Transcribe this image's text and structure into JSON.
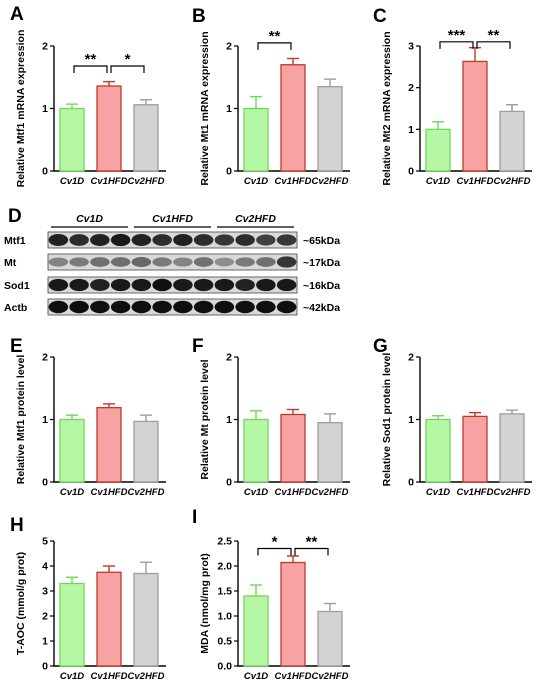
{
  "colors": {
    "green_fill": "#b5f7a5",
    "green_edge": "#6fd85a",
    "red_fill": "#f8a3a3",
    "red_edge": "#c0392b",
    "gray_fill": "#d3d3d3",
    "gray_edge": "#9e9e9e",
    "axis": "#000000"
  },
  "chart_data": [
    {
      "id": "A",
      "type": "bar",
      "panel_label": "A",
      "categories": [
        "Cv1D",
        "Cv1HFD",
        "Cv2HFD"
      ],
      "values": [
        1.0,
        1.36,
        1.06
      ],
      "errors": [
        0.07,
        0.07,
        0.08
      ],
      "ylabel": "Relative Mtf1 mRNA expression",
      "ylim": [
        0,
        2
      ],
      "yticks": [
        0,
        1,
        2
      ],
      "significance": [
        {
          "from": 0,
          "to": 1,
          "label": "**",
          "y": 1.68
        },
        {
          "from": 1,
          "to": 2,
          "label": "*",
          "y": 1.68
        }
      ]
    },
    {
      "id": "B",
      "type": "bar",
      "panel_label": "B",
      "categories": [
        "Cv1D",
        "Cv1HFD",
        "Cv2HFD"
      ],
      "values": [
        1.0,
        1.7,
        1.35
      ],
      "errors": [
        0.19,
        0.1,
        0.12
      ],
      "ylabel": "Relative Mt1 mRNA expression",
      "ylim": [
        0,
        2
      ],
      "yticks": [
        0,
        1,
        2
      ],
      "significance": [
        {
          "from": 0,
          "to": 1,
          "label": "**",
          "y": 2.05
        }
      ]
    },
    {
      "id": "C",
      "type": "bar",
      "panel_label": "C",
      "categories": [
        "Cv1D",
        "Cv1HFD",
        "Cv2HFD"
      ],
      "values": [
        1.0,
        2.63,
        1.43
      ],
      "errors": [
        0.18,
        0.33,
        0.16
      ],
      "ylabel": "Relative Mt2 mRNA expression",
      "ylim": [
        0,
        3
      ],
      "yticks": [
        0,
        1,
        2,
        3
      ],
      "significance": [
        {
          "from": 0,
          "to": 1,
          "label": "***",
          "y": 3.1
        },
        {
          "from": 1,
          "to": 2,
          "label": "**",
          "y": 3.1
        }
      ]
    },
    {
      "id": "E",
      "type": "bar",
      "panel_label": "E",
      "categories": [
        "Cv1D",
        "Cv1HFD",
        "Cv2HFD"
      ],
      "values": [
        1.0,
        1.19,
        0.97
      ],
      "errors": [
        0.07,
        0.06,
        0.1
      ],
      "ylabel": "Relative Mtf1 protein level",
      "ylim": [
        0,
        2
      ],
      "yticks": [
        0,
        1,
        2
      ],
      "significance": []
    },
    {
      "id": "F",
      "type": "bar",
      "panel_label": "F",
      "categories": [
        "Cv1D",
        "Cv1HFD",
        "Cv2HFD"
      ],
      "values": [
        1.0,
        1.08,
        0.95
      ],
      "errors": [
        0.14,
        0.08,
        0.14
      ],
      "ylabel": "Relative Mt protein level",
      "ylim": [
        0,
        2
      ],
      "yticks": [
        0,
        1,
        2
      ],
      "significance": []
    },
    {
      "id": "G",
      "type": "bar",
      "panel_label": "G",
      "categories": [
        "Cv1D",
        "Cv1HFD",
        "Cv2HFD"
      ],
      "values": [
        1.0,
        1.05,
        1.09
      ],
      "errors": [
        0.06,
        0.06,
        0.06
      ],
      "ylabel": "Relative Sod1 protein level",
      "ylim": [
        0,
        2
      ],
      "yticks": [
        0,
        1,
        2
      ],
      "significance": []
    },
    {
      "id": "H",
      "type": "bar",
      "panel_label": "H",
      "categories": [
        "Cv1D",
        "Cv1HFD",
        "Cv2HFD"
      ],
      "values": [
        3.3,
        3.75,
        3.7
      ],
      "errors": [
        0.25,
        0.25,
        0.45
      ],
      "ylabel": "T-AOC (mmol/g prot)",
      "ylim": [
        0,
        5
      ],
      "yticks": [
        0,
        1,
        2,
        3,
        4,
        5
      ],
      "significance": []
    },
    {
      "id": "I",
      "type": "bar",
      "panel_label": "I",
      "categories": [
        "Cv1D",
        "Cv1HFD",
        "Cv2HFD"
      ],
      "values": [
        1.4,
        2.07,
        1.09
      ],
      "errors": [
        0.22,
        0.13,
        0.16
      ],
      "ylabel": "MDA (nmol/mg prot)",
      "ylim": [
        0,
        2.5
      ],
      "yticks": [
        "0.0",
        "0.5",
        "1.0",
        "1.5",
        "2.0",
        "2.5"
      ],
      "significance": [
        {
          "from": 0,
          "to": 1,
          "label": "*",
          "y": 2.35
        },
        {
          "from": 1,
          "to": 2,
          "label": "**",
          "y": 2.35
        }
      ]
    }
  ],
  "blot": {
    "panel_label": "D",
    "groups": [
      "Cv1D",
      "Cv1HFD",
      "Cv2HFD"
    ],
    "lanes_per_group": 4,
    "rows": [
      {
        "protein": "Mtf1",
        "size": "~65kDa",
        "intensity": [
          0.85,
          0.8,
          0.85,
          0.9,
          0.85,
          0.8,
          0.85,
          0.8,
          0.75,
          0.8,
          0.7,
          0.75
        ]
      },
      {
        "protein": "Mt",
        "size": "~17kDa",
        "intensity": [
          0.35,
          0.4,
          0.45,
          0.45,
          0.5,
          0.4,
          0.35,
          0.45,
          0.3,
          0.4,
          0.45,
          0.75
        ]
      },
      {
        "protein": "Sod1",
        "size": "~16kDa",
        "intensity": [
          0.9,
          0.9,
          0.85,
          0.9,
          0.9,
          0.95,
          0.9,
          0.9,
          0.9,
          0.85,
          0.9,
          0.9
        ]
      },
      {
        "protein": "Actb",
        "size": "~42kDa",
        "intensity": [
          0.95,
          0.95,
          0.95,
          0.95,
          0.95,
          0.95,
          0.95,
          0.95,
          0.95,
          0.95,
          0.95,
          0.95
        ]
      }
    ]
  }
}
